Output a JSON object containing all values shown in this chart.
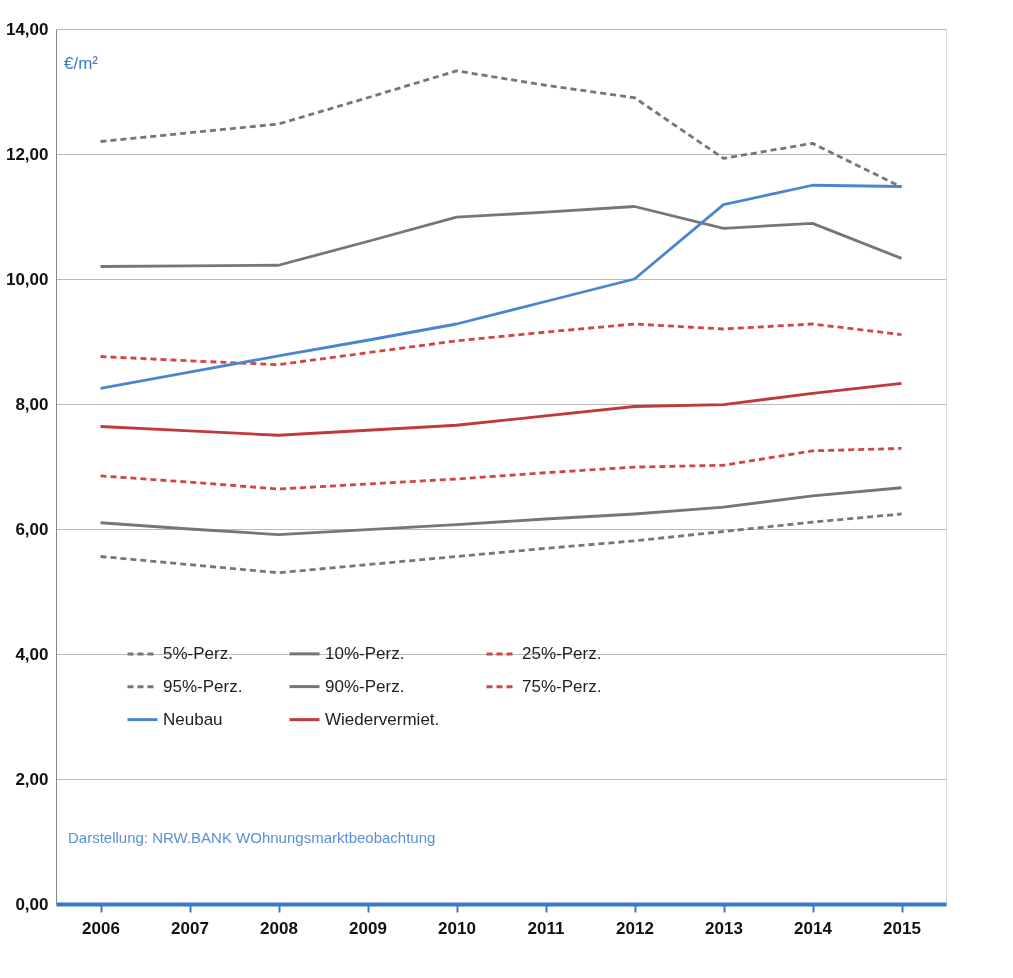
{
  "chart_data": {
    "type": "line",
    "ylabel": "€/m²",
    "categories": [
      "2006",
      "2007",
      "2008",
      "2009",
      "2010",
      "2011",
      "2012",
      "2013",
      "2014",
      "2015"
    ],
    "series": [
      {
        "name": "5%-Perz.",
        "color": "#767676",
        "line_style": "dashed",
        "values": [
          5.56,
          5.43,
          5.3,
          5.43,
          5.56,
          5.69,
          5.81,
          5.96,
          6.11,
          6.24
        ]
      },
      {
        "name": "10%-Perz.",
        "color": "#767676",
        "line_style": "solid",
        "values": [
          6.1,
          6.0,
          5.91,
          5.99,
          6.07,
          6.16,
          6.24,
          6.35,
          6.53,
          6.66
        ]
      },
      {
        "name": "25%-Perz.",
        "color": "#d04545",
        "line_style": "dashed",
        "values": [
          6.85,
          6.75,
          6.64,
          6.72,
          6.8,
          6.9,
          6.99,
          7.02,
          7.25,
          7.29
        ]
      },
      {
        "name": "95%-Perz.",
        "color": "#767676",
        "line_style": "dashed",
        "values": [
          12.2,
          12.34,
          12.48,
          12.9,
          13.33,
          13.1,
          12.9,
          11.93,
          12.17,
          11.47
        ]
      },
      {
        "name": "90%-Perz.",
        "color": "#767676",
        "line_style": "solid",
        "values": [
          10.2,
          10.21,
          10.22,
          10.6,
          10.99,
          11.07,
          11.16,
          10.81,
          10.89,
          10.33
        ]
      },
      {
        "name": "75%-Perz.",
        "color": "#d04545",
        "line_style": "dashed",
        "values": [
          8.76,
          8.69,
          8.63,
          8.82,
          9.01,
          9.15,
          9.28,
          9.2,
          9.28,
          9.11
        ]
      },
      {
        "name": "Neubau",
        "color": "#4a86d0",
        "line_style": "solid",
        "values": [
          8.25,
          8.51,
          8.77,
          9.02,
          9.28,
          9.64,
          10.0,
          11.19,
          11.5,
          11.48
        ]
      },
      {
        "name": "Wiedervermiet.",
        "color": "#c0393b",
        "line_style": "solid",
        "values": [
          7.64,
          7.57,
          7.5,
          7.58,
          7.66,
          7.81,
          7.96,
          7.99,
          8.17,
          8.33
        ]
      }
    ],
    "ylim": [
      0,
      14
    ],
    "yticks": [
      {
        "value": 0,
        "label": "0,00"
      },
      {
        "value": 2,
        "label": "2,00"
      },
      {
        "value": 4,
        "label": "4,00"
      },
      {
        "value": 6,
        "label": "6,00"
      },
      {
        "value": 8,
        "label": "8,00"
      },
      {
        "value": 10,
        "label": "10,00"
      },
      {
        "value": 12,
        "label": "12,00"
      },
      {
        "value": 14,
        "label": "14,00"
      }
    ],
    "grid": "y",
    "legend": "bottom",
    "marker": "none",
    "annotations": [
      "Darstellung: NRW.BANK WOhnungsmarktbeobachtung"
    ]
  }
}
